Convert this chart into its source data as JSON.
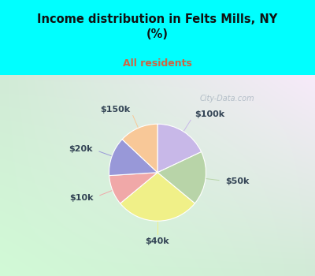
{
  "title": "Income distribution in Felts Mills, NY\n(%)",
  "subtitle": "All residents",
  "title_color": "#111111",
  "subtitle_color": "#cc6644",
  "labels": [
    "$100k",
    "$50k",
    "$40k",
    "$10k",
    "$20k",
    "$150k"
  ],
  "sizes": [
    18,
    18,
    28,
    10,
    13,
    13
  ],
  "colors": [
    "#c8b8e8",
    "#b8d4a8",
    "#f0f088",
    "#f0a8a8",
    "#9898d8",
    "#f8c898"
  ],
  "startangle": 90,
  "bg_top": "#00ffff",
  "label_color": "#334455",
  "label_fontsize": 8,
  "watermark": "City-Data.com"
}
